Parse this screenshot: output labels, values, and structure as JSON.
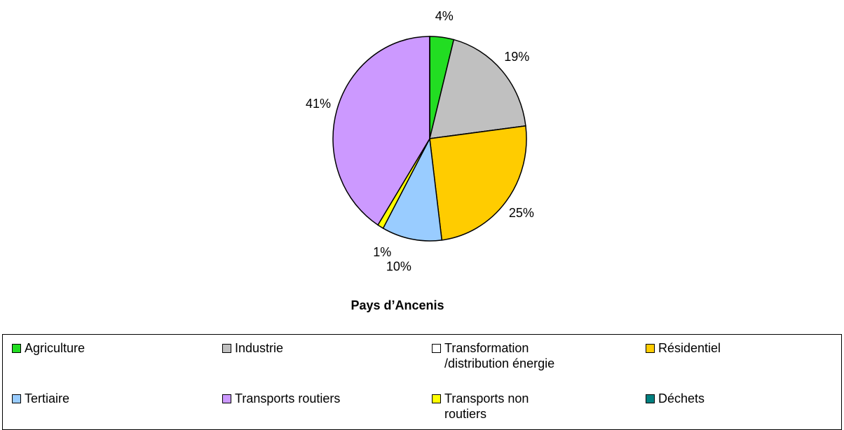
{
  "chart_data": {
    "type": "pie",
    "title": "Pays d’Ancenis",
    "categories": [
      "Agriculture",
      "Industrie",
      "Transformation /distribution énergie",
      "Résidentiel",
      "Tertiaire",
      "Transports non routiers",
      "Transports routiers",
      "Déchets"
    ],
    "values": [
      4,
      19,
      0,
      25,
      10,
      1,
      41,
      0
    ],
    "value_labels": [
      "4%",
      "19%",
      null,
      "25%",
      "10%",
      "1%",
      "41%",
      null
    ],
    "colors": [
      "#22dd22",
      "#c0c0c0",
      "#ffffff",
      "#ffcc00",
      "#99ccff",
      "#ffff00",
      "#cc99ff",
      "#008080"
    ]
  }
}
